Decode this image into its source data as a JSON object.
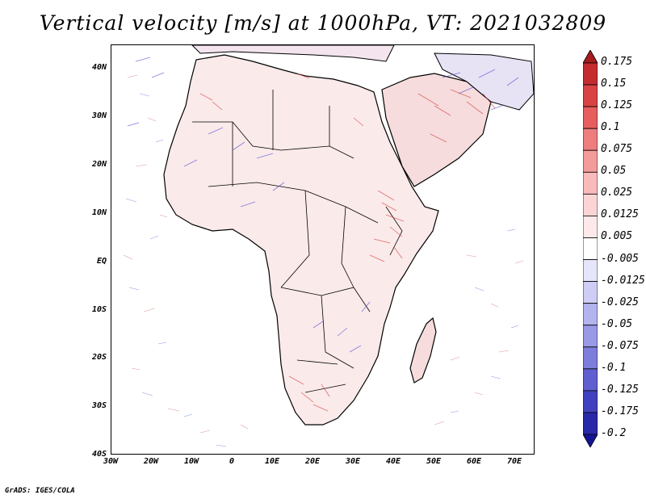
{
  "title": "Vertical velocity [m/s] at 1000hPa, VT: 2021032809",
  "credit": "GrADS: IGES/COLA",
  "lat_labels": [
    "40N",
    "30N",
    "20N",
    "10N",
    "EQ",
    "10S",
    "20S",
    "30S",
    "40S"
  ],
  "lon_labels": [
    "30W",
    "20W",
    "10W",
    "0",
    "10E",
    "20E",
    "30E",
    "40E",
    "50E",
    "60E",
    "70E"
  ],
  "colorbar": {
    "levels": [
      "0.175",
      "0.15",
      "0.125",
      "0.1",
      "0.075",
      "0.05",
      "0.025",
      "0.0125",
      "0.005",
      "-0.005",
      "-0.0125",
      "-0.025",
      "-0.05",
      "-0.075",
      "-0.1",
      "-0.125",
      "-0.175",
      "-0.2"
    ],
    "colors": [
      "#a51d1d",
      "#c42d2d",
      "#d84343",
      "#e65e5e",
      "#ee7d7d",
      "#f49b9b",
      "#f8baba",
      "#fbd5d5",
      "#fde9e9",
      "#ffffff",
      "#e6e6fb",
      "#cdcdf5",
      "#b3b3ee",
      "#9999e6",
      "#7d7ddc",
      "#5f5fcf",
      "#4141bf",
      "#2828a8",
      "#141496"
    ]
  }
}
